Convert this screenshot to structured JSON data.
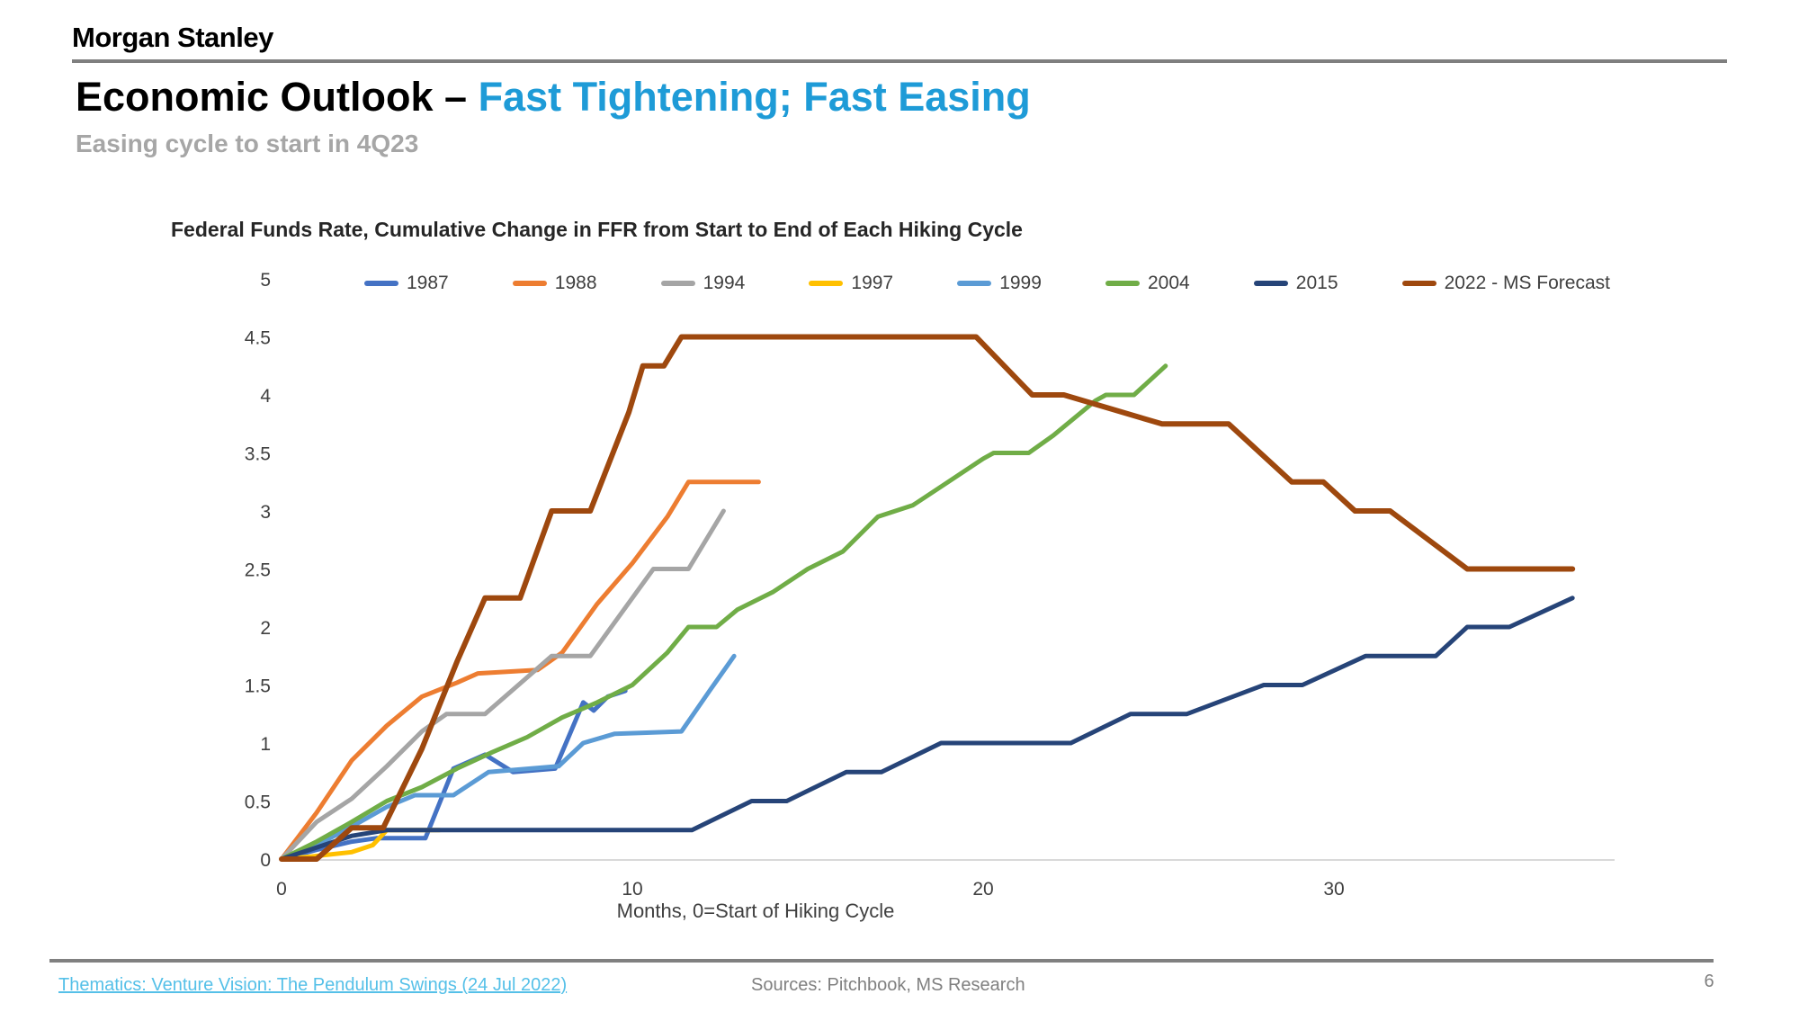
{
  "header": {
    "brand": "Morgan Stanley",
    "title_prefix": "Economic Outlook – ",
    "title_highlight": "Fast Tightening; Fast Easing",
    "subtitle": "Easing cycle to start in 4Q23"
  },
  "colors": {
    "title_highlight": "#1e9bd7",
    "subtitle_gray": "#a6a6a6",
    "rule_gray": "#7f7f7f",
    "axis_text": "#404040",
    "axis_line": "#d9d9d9",
    "footer_link_blue": "#55c0e8"
  },
  "chart_data": {
    "type": "line",
    "title": "Federal Funds Rate, Cumulative Change in FFR from Start to End of Each Hiking Cycle",
    "xlabel": "Months, 0=Start of Hiking Cycle",
    "ylabel": "",
    "xlim": [
      0,
      38
    ],
    "ylim": [
      0,
      5
    ],
    "xticks": [
      0,
      10,
      20,
      30
    ],
    "yticks": [
      "0",
      "0.5",
      "1",
      "1.5",
      "2",
      "2.5",
      "3",
      "3.5",
      "4",
      "4.5",
      "5"
    ],
    "grid": false,
    "legend_position": "top",
    "series": [
      {
        "name": "1987",
        "color": "#4472c4",
        "width": 5,
        "points": [
          [
            0,
            0
          ],
          [
            1,
            0.08
          ],
          [
            2,
            0.15
          ],
          [
            2.7,
            0.18
          ],
          [
            4.1,
            0.18
          ],
          [
            4.9,
            0.78
          ],
          [
            5.8,
            0.9
          ],
          [
            6.6,
            0.75
          ],
          [
            7.8,
            0.78
          ],
          [
            8.6,
            1.35
          ],
          [
            8.9,
            1.28
          ],
          [
            9.3,
            1.4
          ],
          [
            9.8,
            1.45
          ]
        ]
      },
      {
        "name": "1988",
        "color": "#ed7d31",
        "width": 5,
        "points": [
          [
            0,
            0
          ],
          [
            1,
            0.4
          ],
          [
            2,
            0.85
          ],
          [
            3,
            1.15
          ],
          [
            4,
            1.4
          ],
          [
            5,
            1.52
          ],
          [
            5.6,
            1.6
          ],
          [
            7.3,
            1.63
          ],
          [
            8,
            1.78
          ],
          [
            9,
            2.2
          ],
          [
            10,
            2.55
          ],
          [
            11,
            2.95
          ],
          [
            11.6,
            3.25
          ],
          [
            13.6,
            3.25
          ]
        ]
      },
      {
        "name": "1994",
        "color": "#a5a5a5",
        "width": 5,
        "points": [
          [
            0,
            0
          ],
          [
            1,
            0.32
          ],
          [
            2,
            0.52
          ],
          [
            3,
            0.8
          ],
          [
            4,
            1.1
          ],
          [
            4.7,
            1.25
          ],
          [
            5.8,
            1.25
          ],
          [
            7.7,
            1.75
          ],
          [
            8.8,
            1.75
          ],
          [
            10.6,
            2.5
          ],
          [
            11.6,
            2.5
          ],
          [
            12.6,
            3.0
          ]
        ]
      },
      {
        "name": "1997",
        "color": "#ffc000",
        "width": 5,
        "points": [
          [
            0,
            0
          ],
          [
            0.8,
            0.02
          ],
          [
            2,
            0.06
          ],
          [
            2.6,
            0.12
          ],
          [
            3,
            0.25
          ],
          [
            4.5,
            0.25
          ]
        ]
      },
      {
        "name": "1999",
        "color": "#5b9bd5",
        "width": 5,
        "points": [
          [
            0,
            0
          ],
          [
            1,
            0.12
          ],
          [
            2,
            0.28
          ],
          [
            3,
            0.45
          ],
          [
            3.8,
            0.55
          ],
          [
            4.9,
            0.55
          ],
          [
            5.9,
            0.75
          ],
          [
            7.9,
            0.8
          ],
          [
            8.6,
            1.0
          ],
          [
            9.5,
            1.08
          ],
          [
            11.4,
            1.1
          ],
          [
            12.2,
            1.45
          ],
          [
            12.9,
            1.75
          ]
        ]
      },
      {
        "name": "2004",
        "color": "#70ad47",
        "width": 5,
        "points": [
          [
            0,
            0
          ],
          [
            1,
            0.15
          ],
          [
            2,
            0.32
          ],
          [
            3,
            0.5
          ],
          [
            4,
            0.62
          ],
          [
            5,
            0.78
          ],
          [
            6,
            0.92
          ],
          [
            7,
            1.05
          ],
          [
            8,
            1.22
          ],
          [
            9,
            1.35
          ],
          [
            10,
            1.5
          ],
          [
            11,
            1.78
          ],
          [
            11.6,
            2.0
          ],
          [
            12.4,
            2.0
          ],
          [
            13,
            2.15
          ],
          [
            14,
            2.3
          ],
          [
            15,
            2.5
          ],
          [
            16,
            2.65
          ],
          [
            17,
            2.95
          ],
          [
            18,
            3.05
          ],
          [
            19,
            3.25
          ],
          [
            20,
            3.45
          ],
          [
            20.3,
            3.5
          ],
          [
            21.3,
            3.5
          ],
          [
            22,
            3.65
          ],
          [
            23.2,
            3.95
          ],
          [
            23.5,
            4.0
          ],
          [
            24.3,
            4.0
          ],
          [
            25.2,
            4.25
          ]
        ]
      },
      {
        "name": "2015",
        "color": "#264478",
        "width": 5,
        "points": [
          [
            0,
            0
          ],
          [
            1,
            0.1
          ],
          [
            2,
            0.2
          ],
          [
            3,
            0.25
          ],
          [
            11.7,
            0.25
          ],
          [
            13.4,
            0.5
          ],
          [
            14.4,
            0.5
          ],
          [
            16.1,
            0.75
          ],
          [
            17.1,
            0.75
          ],
          [
            18.8,
            1.0
          ],
          [
            22.5,
            1.0
          ],
          [
            24.2,
            1.25
          ],
          [
            25.8,
            1.25
          ],
          [
            28,
            1.5
          ],
          [
            29.1,
            1.5
          ],
          [
            30.9,
            1.75
          ],
          [
            32.9,
            1.75
          ],
          [
            33.8,
            2.0
          ],
          [
            35,
            2.0
          ],
          [
            36.8,
            2.25
          ]
        ]
      },
      {
        "name": "2022 - MS Forecast",
        "color": "#9e480e",
        "width": 6,
        "points": [
          [
            0,
            0
          ],
          [
            1,
            0
          ],
          [
            2,
            0.27
          ],
          [
            2.9,
            0.27
          ],
          [
            4,
            0.95
          ],
          [
            5,
            1.7
          ],
          [
            5.8,
            2.25
          ],
          [
            6.8,
            2.25
          ],
          [
            7.7,
            3.0
          ],
          [
            8.8,
            3.0
          ],
          [
            9.9,
            3.85
          ],
          [
            10.3,
            4.25
          ],
          [
            10.9,
            4.25
          ],
          [
            11.4,
            4.5
          ],
          [
            19.8,
            4.5
          ],
          [
            21.4,
            4.0
          ],
          [
            22.3,
            4.0
          ],
          [
            25.1,
            3.75
          ],
          [
            27,
            3.75
          ],
          [
            28.8,
            3.25
          ],
          [
            29.7,
            3.25
          ],
          [
            30.6,
            3.0
          ],
          [
            31.6,
            3.0
          ],
          [
            33.8,
            2.5
          ],
          [
            36.8,
            2.5
          ]
        ]
      }
    ]
  },
  "footer": {
    "link": "Thematics: Venture Vision: The Pendulum Swings (24 Jul 2022)",
    "sources": "Sources: Pitchbook, MS Research",
    "page": "6"
  }
}
